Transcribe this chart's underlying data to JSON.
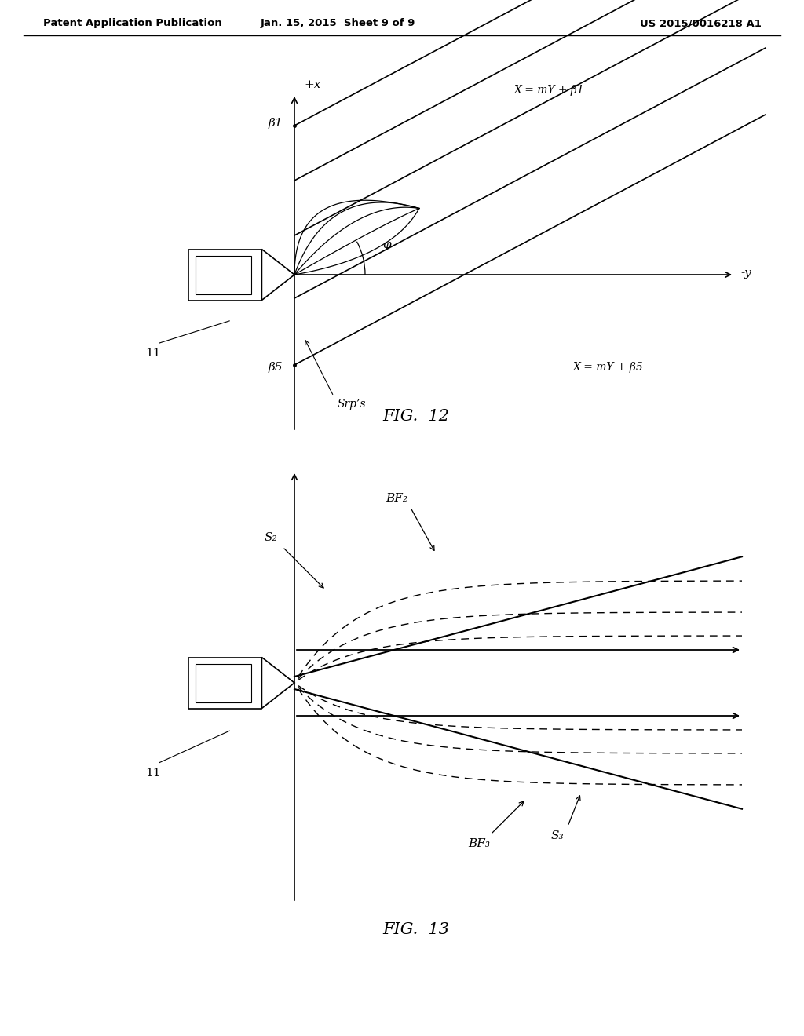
{
  "bg_color": "#ffffff",
  "line_color": "#000000",
  "header_left": "Patent Application Publication",
  "header_mid": "Jan. 15, 2015  Sheet 9 of 9",
  "header_right": "US 2015/0016218 A1",
  "fig12_title": "FIG.  12",
  "fig13_title": "FIG.  13",
  "fig12_labels": {
    "x_axis": "+x",
    "y_axis": "-y",
    "beta1": "β1",
    "beta5": "β5",
    "phi": "φ",
    "eq1": "X = mY + β1",
    "eq5": "X = mY + β5",
    "srps": "Srp’s",
    "label11": "11"
  },
  "fig13_labels": {
    "S2": "S₂",
    "BF2": "BF₂",
    "S3": "S₃",
    "BF3": "BF₃",
    "label11": "11"
  }
}
